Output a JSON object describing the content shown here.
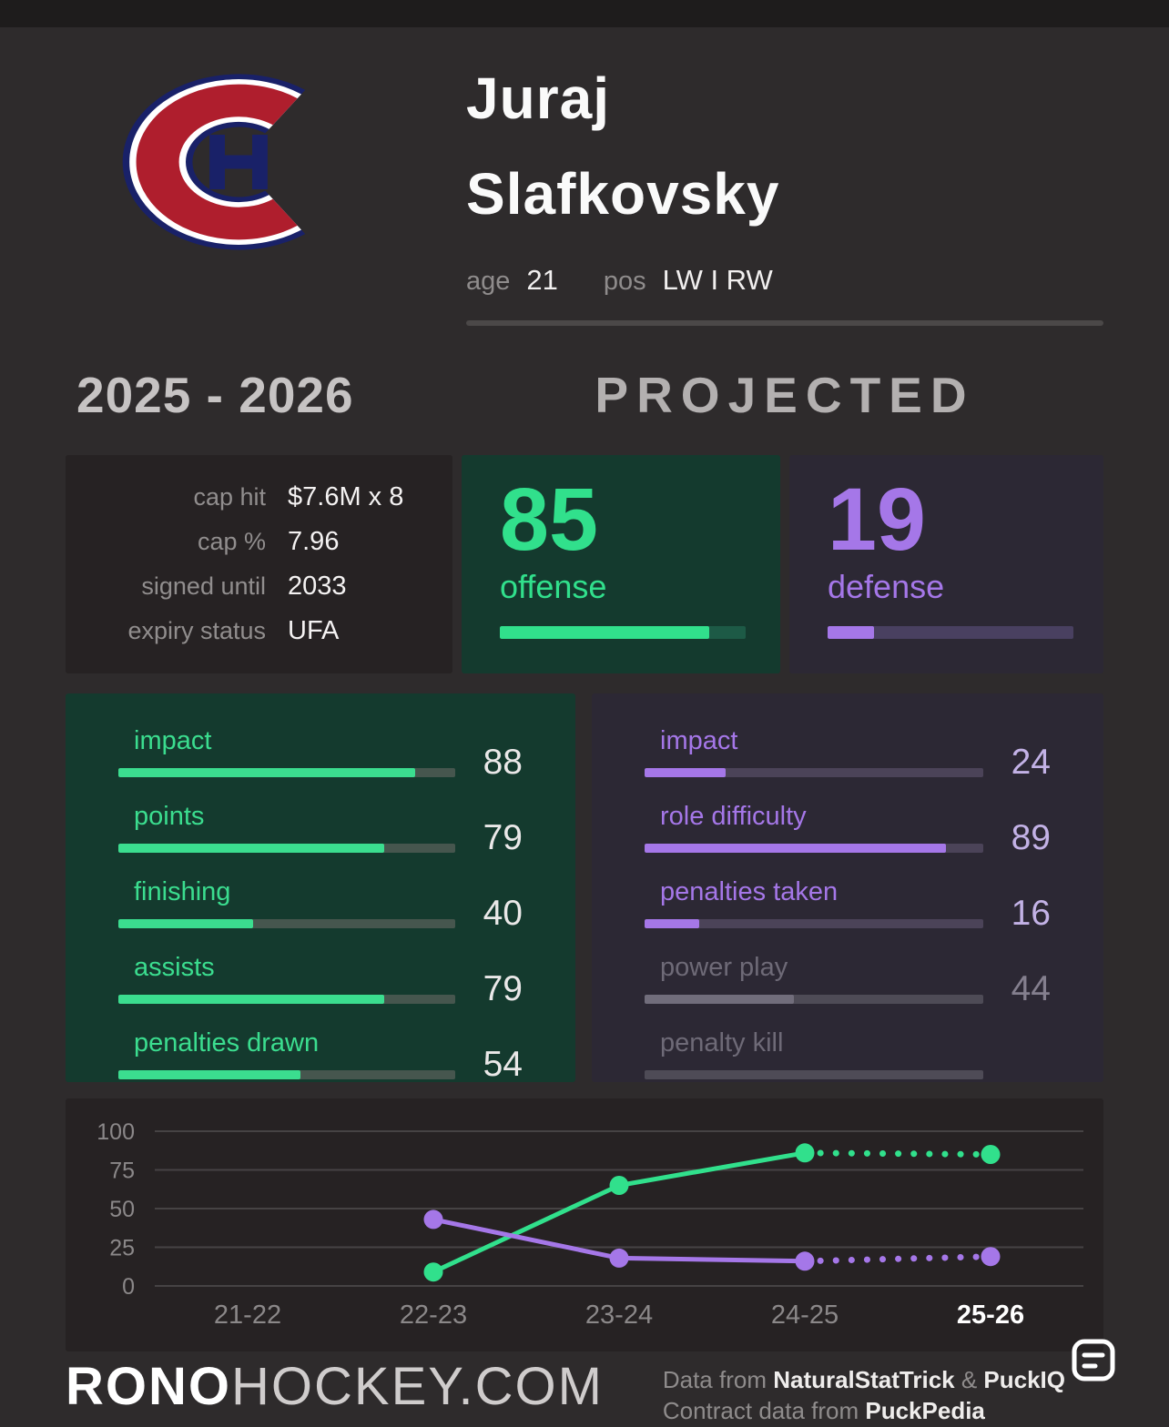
{
  "colors": {
    "green": "#31e08c",
    "purple": "#a577e8",
    "background": "#2e2b2c",
    "panel": "#262223",
    "offense_panel": "#143a2e",
    "defense_panel": "#2c2834"
  },
  "header": {
    "first_name": "Juraj",
    "last_name": "Slafkovsky",
    "age_label": "age",
    "age_value": "21",
    "pos_label": "pos",
    "pos_value": "LW I RW",
    "logo": "montreal-canadiens-logo"
  },
  "season": {
    "years": "2025 - 2026",
    "tag": "PROJECTED"
  },
  "contract": {
    "rows": [
      {
        "label": "cap hit",
        "value": "$7.6M x 8"
      },
      {
        "label": "cap %",
        "value": "7.96"
      },
      {
        "label": "signed until",
        "value": "2033"
      },
      {
        "label": "expiry status",
        "value": "UFA"
      }
    ]
  },
  "ratings": {
    "offense": {
      "label": "offense",
      "value": 85
    },
    "defense": {
      "label": "defense",
      "value": 19
    }
  },
  "offense_stats": [
    {
      "label": "impact",
      "value": 88,
      "muted": false
    },
    {
      "label": "points",
      "value": 79,
      "muted": false
    },
    {
      "label": "finishing",
      "value": 40,
      "muted": false
    },
    {
      "label": "assists",
      "value": 79,
      "muted": false
    },
    {
      "label": "penalties drawn",
      "value": 54,
      "muted": false
    }
  ],
  "defense_stats": [
    {
      "label": "impact",
      "value": 24,
      "muted": false
    },
    {
      "label": "role difficulty",
      "value": 89,
      "muted": false
    },
    {
      "label": "penalties taken",
      "value": 16,
      "muted": false
    },
    {
      "label": "power play",
      "value": 44,
      "muted": true
    },
    {
      "label": "penalty kill",
      "value": null,
      "muted": true
    }
  ],
  "chart_data": {
    "type": "line",
    "x": [
      "21-22",
      "22-23",
      "23-24",
      "24-25",
      "25-26"
    ],
    "series": [
      {
        "name": "offense",
        "color": "#31e08c",
        "values": [
          null,
          9,
          65,
          86,
          85
        ],
        "solid_until": 3
      },
      {
        "name": "defense",
        "color": "#a577e8",
        "values": [
          null,
          43,
          18,
          16,
          19
        ],
        "solid_until": 3
      }
    ],
    "ylim": [
      0,
      100
    ],
    "yticks": [
      0,
      25,
      50,
      75,
      100
    ],
    "grid": true,
    "highlight_x": "25-26",
    "note": "values from 24-25 to 25-26 are projected (dotted)"
  },
  "footer": {
    "site_bold": "RONO",
    "site_rest": "HOCKEY.COM",
    "line1_prefix": "Data from ",
    "line1_source1": "NaturalStatTrick",
    "line1_mid": " & ",
    "line1_source2": "PuckIQ",
    "line2_prefix": "Contract data from ",
    "line2_source": "PuckPedia"
  }
}
